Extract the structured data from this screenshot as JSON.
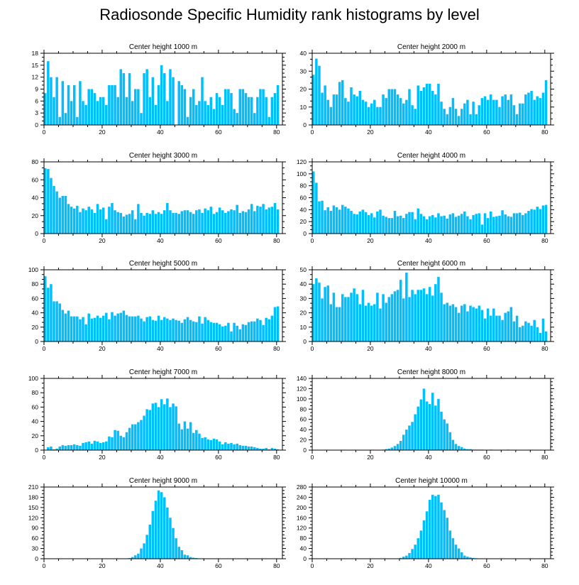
{
  "title": "Radiosonde Specific Humidity rank histograms by level",
  "bar_color": "#00bfff",
  "chart_data": [
    {
      "type": "bar",
      "title": "Center height 1000 m",
      "xlabel": "",
      "ylabel": "",
      "xlim": [
        0,
        82
      ],
      "xticks": [
        0,
        20,
        40,
        60,
        80
      ],
      "ylim": [
        0,
        18
      ],
      "yticks": [
        0,
        3,
        6,
        9,
        12,
        15,
        18
      ],
      "values": [
        8,
        16,
        12,
        7,
        12,
        2,
        11,
        3,
        10,
        6,
        10,
        2,
        11,
        6,
        5,
        9,
        9,
        8,
        6,
        7,
        7,
        5,
        10,
        10,
        10,
        7,
        14,
        13,
        7,
        13,
        6,
        9,
        9,
        3,
        13,
        14,
        7,
        12,
        5,
        10,
        15,
        13,
        6,
        14,
        12,
        0,
        11,
        10,
        9,
        2,
        7,
        9,
        5,
        6,
        12,
        6,
        5,
        7,
        4,
        8,
        7,
        5,
        9,
        9,
        8,
        4,
        3,
        9,
        9,
        8,
        7,
        7,
        3,
        7,
        9,
        9,
        7,
        2,
        7,
        8,
        10
      ]
    },
    {
      "type": "bar",
      "title": "Center height 2000 m",
      "xlabel": "",
      "ylabel": "",
      "xlim": [
        0,
        82
      ],
      "xticks": [
        0,
        20,
        40,
        60,
        80
      ],
      "ylim": [
        0,
        40
      ],
      "yticks": [
        0,
        10,
        20,
        30,
        40
      ],
      "values": [
        28,
        37,
        33,
        18,
        22,
        14,
        10,
        17,
        17,
        24,
        25,
        15,
        13,
        21,
        17,
        16,
        19,
        14,
        13,
        10,
        12,
        14,
        10,
        10,
        17,
        15,
        20,
        20,
        20,
        17,
        15,
        12,
        14,
        20,
        11,
        9,
        22,
        19,
        21,
        23,
        23,
        19,
        17,
        23,
        13,
        9,
        6,
        10,
        15,
        9,
        5,
        9,
        12,
        14,
        6,
        13,
        6,
        11,
        15,
        16,
        14,
        17,
        14,
        14,
        10,
        16,
        17,
        14,
        17,
        11,
        6,
        12,
        12,
        17,
        18,
        19,
        14,
        16,
        15,
        18,
        25
      ]
    },
    {
      "type": "bar",
      "title": "Center height 3000 m",
      "xlabel": "",
      "ylabel": "",
      "xlim": [
        0,
        82
      ],
      "xticks": [
        0,
        20,
        40,
        60,
        80
      ],
      "ylim": [
        0,
        80
      ],
      "yticks": [
        0,
        20,
        40,
        60,
        80
      ],
      "values": [
        73,
        72,
        62,
        53,
        47,
        40,
        42,
        42,
        33,
        30,
        28,
        31,
        24,
        28,
        26,
        30,
        27,
        23,
        33,
        27,
        29,
        16,
        30,
        34,
        26,
        24,
        23,
        19,
        21,
        22,
        26,
        16,
        33,
        23,
        20,
        23,
        22,
        26,
        22,
        24,
        22,
        26,
        34,
        26,
        23,
        23,
        22,
        25,
        26,
        26,
        24,
        22,
        26,
        27,
        23,
        28,
        26,
        30,
        22,
        24,
        29,
        26,
        23,
        25,
        27,
        26,
        32,
        23,
        25,
        24,
        27,
        33,
        25,
        31,
        30,
        33,
        27,
        29,
        30,
        34,
        27
      ]
    },
    {
      "type": "bar",
      "title": "Center height 4000 m",
      "xlabel": "",
      "ylabel": "",
      "xlim": [
        0,
        82
      ],
      "xticks": [
        0,
        20,
        40,
        60,
        80
      ],
      "ylim": [
        0,
        120
      ],
      "yticks": [
        0,
        20,
        40,
        60,
        80,
        100,
        120
      ],
      "values": [
        104,
        85,
        54,
        55,
        39,
        44,
        38,
        47,
        44,
        40,
        48,
        45,
        42,
        38,
        33,
        32,
        37,
        40,
        36,
        31,
        34,
        27,
        37,
        40,
        30,
        28,
        26,
        26,
        38,
        29,
        30,
        26,
        33,
        36,
        36,
        24,
        42,
        33,
        29,
        24,
        29,
        31,
        27,
        34,
        29,
        30,
        25,
        32,
        34,
        28,
        30,
        33,
        37,
        29,
        24,
        31,
        33,
        34,
        15,
        34,
        26,
        37,
        28,
        29,
        30,
        39,
        32,
        29,
        28,
        34,
        34,
        35,
        31,
        34,
        38,
        41,
        40,
        45,
        41,
        47,
        48
      ]
    },
    {
      "type": "bar",
      "title": "Center height 5000 m",
      "xlabel": "",
      "ylabel": "",
      "xlim": [
        0,
        82
      ],
      "xticks": [
        0,
        20,
        40,
        60,
        80
      ],
      "ylim": [
        0,
        100
      ],
      "yticks": [
        0,
        20,
        40,
        60,
        80,
        100
      ],
      "values": [
        91,
        75,
        80,
        56,
        56,
        53,
        44,
        39,
        43,
        35,
        35,
        35,
        31,
        34,
        24,
        39,
        32,
        33,
        36,
        33,
        36,
        40,
        31,
        41,
        36,
        39,
        40,
        43,
        37,
        35,
        35,
        35,
        36,
        32,
        28,
        34,
        35,
        30,
        29,
        36,
        30,
        34,
        32,
        30,
        32,
        30,
        29,
        26,
        31,
        34,
        30,
        28,
        27,
        35,
        25,
        34,
        30,
        27,
        26,
        26,
        24,
        21,
        22,
        26,
        14,
        26,
        22,
        17,
        24,
        23,
        27,
        28,
        28,
        32,
        30,
        23,
        33,
        31,
        36,
        48,
        49
      ]
    },
    {
      "type": "bar",
      "title": "Center height 6000 m",
      "xlabel": "",
      "ylabel": "",
      "xlim": [
        0,
        82
      ],
      "xticks": [
        0,
        20,
        40,
        60,
        80
      ],
      "ylim": [
        0,
        50
      ],
      "yticks": [
        0,
        10,
        20,
        30,
        40,
        50
      ],
      "values": [
        40,
        44,
        41,
        30,
        38,
        39,
        26,
        34,
        24,
        24,
        33,
        31,
        31,
        34,
        37,
        33,
        26,
        36,
        25,
        27,
        25,
        26,
        34,
        23,
        33,
        27,
        31,
        33,
        35,
        36,
        43,
        30,
        48,
        31,
        36,
        33,
        36,
        36,
        37,
        33,
        38,
        32,
        40,
        45,
        34,
        26,
        27,
        25,
        26,
        24,
        20,
        25,
        26,
        21,
        25,
        24,
        23,
        25,
        22,
        16,
        23,
        18,
        23,
        18,
        18,
        15,
        20,
        21,
        24,
        14,
        18,
        10,
        11,
        14,
        13,
        11,
        15,
        10,
        6,
        16,
        7
      ]
    },
    {
      "type": "bar",
      "title": "Center height 7000 m",
      "xlabel": "",
      "ylabel": "",
      "xlim": [
        0,
        82
      ],
      "xticks": [
        0,
        20,
        40,
        60,
        80
      ],
      "ylim": [
        0,
        100
      ],
      "yticks": [
        0,
        20,
        40,
        60,
        80,
        100
      ],
      "values": [
        0,
        4,
        5,
        1,
        2,
        5,
        7,
        6,
        7,
        7,
        8,
        7,
        6,
        10,
        11,
        12,
        9,
        13,
        12,
        10,
        11,
        12,
        19,
        18,
        28,
        27,
        20,
        18,
        25,
        31,
        36,
        36,
        39,
        42,
        48,
        57,
        56,
        65,
        66,
        60,
        71,
        64,
        72,
        60,
        65,
        61,
        37,
        29,
        40,
        30,
        39,
        24,
        28,
        23,
        17,
        18,
        15,
        14,
        16,
        15,
        12,
        8,
        11,
        9,
        10,
        8,
        9,
        7,
        6,
        6,
        5,
        5,
        4,
        3,
        2,
        2,
        3,
        1,
        3,
        2,
        1
      ]
    },
    {
      "type": "bar",
      "title": "Center height 8000 m",
      "xlabel": "",
      "ylabel": "",
      "xlim": [
        0,
        82
      ],
      "xticks": [
        0,
        20,
        40,
        60,
        80
      ],
      "ylim": [
        0,
        140
      ],
      "yticks": [
        0,
        20,
        40,
        60,
        80,
        100,
        120,
        140
      ],
      "values": [
        0,
        0,
        0,
        0,
        0,
        0,
        0,
        0,
        0,
        0,
        0,
        0,
        0,
        0,
        0,
        0,
        0,
        0,
        0,
        0,
        0,
        0,
        0,
        0,
        1,
        2,
        3,
        5,
        8,
        12,
        18,
        30,
        40,
        48,
        55,
        70,
        85,
        99,
        120,
        95,
        90,
        112,
        87,
        100,
        75,
        60,
        52,
        35,
        20,
        12,
        8,
        6,
        3,
        2,
        2,
        1,
        1,
        1,
        1,
        0,
        0,
        1,
        0,
        0,
        0,
        0,
        0,
        1,
        0,
        0,
        0,
        0,
        0,
        0,
        0,
        0,
        0,
        0,
        0,
        0,
        0
      ]
    },
    {
      "type": "bar",
      "title": "Center height 9000 m",
      "xlabel": "",
      "ylabel": "",
      "xlim": [
        0,
        82
      ],
      "xticks": [
        0,
        20,
        40,
        60,
        80
      ],
      "ylim": [
        0,
        210
      ],
      "yticks": [
        0,
        30,
        60,
        90,
        120,
        150,
        180,
        210
      ],
      "values": [
        0,
        0,
        0,
        0,
        0,
        0,
        0,
        0,
        0,
        0,
        0,
        0,
        0,
        0,
        0,
        0,
        0,
        0,
        0,
        0,
        0,
        0,
        0,
        0,
        0,
        0,
        0,
        0,
        0,
        2,
        5,
        10,
        15,
        30,
        45,
        70,
        100,
        140,
        170,
        200,
        195,
        180,
        150,
        120,
        90,
        60,
        35,
        25,
        12,
        10,
        5,
        3,
        2,
        1,
        1,
        0,
        0,
        0,
        0,
        0,
        0,
        0,
        0,
        0,
        0,
        0,
        0,
        0,
        0,
        0,
        0,
        0,
        0,
        0,
        0,
        0,
        0,
        0,
        0,
        0,
        0
      ]
    },
    {
      "type": "bar",
      "title": "Center height 10000 m",
      "xlabel": "",
      "ylabel": "",
      "xlim": [
        0,
        82
      ],
      "xticks": [
        0,
        20,
        40,
        60,
        80
      ],
      "ylim": [
        0,
        280
      ],
      "yticks": [
        0,
        40,
        80,
        120,
        160,
        200,
        240,
        280
      ],
      "values": [
        0,
        0,
        0,
        0,
        0,
        0,
        0,
        0,
        0,
        0,
        0,
        0,
        0,
        0,
        0,
        0,
        0,
        0,
        0,
        0,
        0,
        0,
        0,
        0,
        0,
        0,
        0,
        0,
        0,
        0,
        3,
        8,
        12,
        22,
        38,
        55,
        80,
        110,
        150,
        185,
        230,
        250,
        245,
        250,
        220,
        190,
        160,
        110,
        80,
        55,
        40,
        25,
        12,
        8,
        5,
        3,
        2,
        1,
        0,
        0,
        0,
        0,
        0,
        0,
        0,
        0,
        0,
        0,
        0,
        0,
        0,
        0,
        0,
        0,
        0,
        0,
        0,
        0,
        0,
        0,
        0
      ]
    }
  ]
}
